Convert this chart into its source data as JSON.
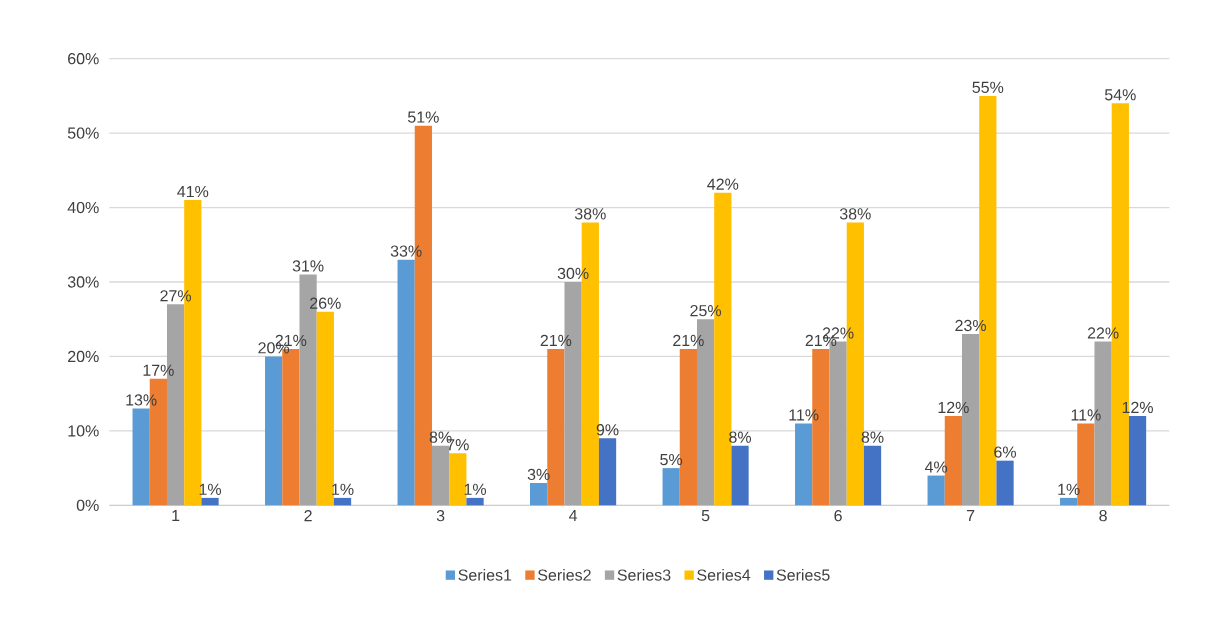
{
  "chart_data": {
    "type": "bar",
    "categories": [
      "1",
      "2",
      "3",
      "4",
      "5",
      "6",
      "7",
      "8"
    ],
    "series": [
      {
        "name": "Series1",
        "color": "#5b9bd5",
        "values": [
          13,
          20,
          33,
          3,
          5,
          11,
          4,
          1
        ],
        "value_labels": [
          "13%",
          "20%",
          "33%",
          "3%",
          "5%",
          "11%",
          "4%",
          "1%"
        ]
      },
      {
        "name": "Series2",
        "color": "#ed7d31",
        "values": [
          17,
          21,
          51,
          21,
          21,
          21,
          12,
          11
        ],
        "value_labels": [
          "17%",
          "21%",
          "51%",
          "21%",
          "21%",
          "21%",
          "12%",
          "11%"
        ]
      },
      {
        "name": "Series3",
        "color": "#a5a5a5",
        "values": [
          27,
          31,
          8,
          30,
          25,
          22,
          23,
          22
        ],
        "value_labels": [
          "27%",
          "31%",
          "8%",
          "30%",
          "25%",
          "22%",
          "23%",
          "22%"
        ]
      },
      {
        "name": "Series4",
        "color": "#ffc000",
        "values": [
          41,
          26,
          7,
          38,
          42,
          38,
          55,
          54
        ],
        "value_labels": [
          "41%",
          "26%",
          "7%",
          "38%",
          "42%",
          "38%",
          "55%",
          "54%"
        ]
      },
      {
        "name": "Series5",
        "color": "#4472c4",
        "values": [
          1,
          1,
          1,
          9,
          8,
          8,
          6,
          12
        ],
        "value_labels": [
          "1%",
          "1%",
          "1%",
          "9%",
          "8%",
          "8%",
          "6%",
          "12%"
        ]
      }
    ],
    "ylim": [
      0,
      60
    ],
    "yticks": [
      {
        "value": 0,
        "label": "0%"
      },
      {
        "value": 10,
        "label": "10%"
      },
      {
        "value": 20,
        "label": "20%"
      },
      {
        "value": 30,
        "label": "30%"
      },
      {
        "value": 40,
        "label": "40%"
      },
      {
        "value": 50,
        "label": "50%"
      },
      {
        "value": 60,
        "label": "60%"
      }
    ],
    "grid": "y",
    "legend": "bottom"
  }
}
